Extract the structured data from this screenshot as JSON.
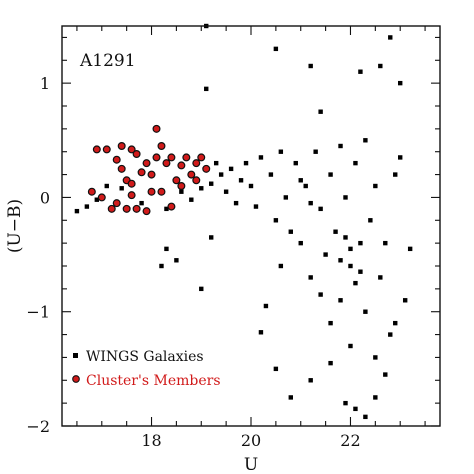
{
  "chart_data": {
    "type": "scatter",
    "annotation": "A1291",
    "xlabel": "U",
    "ylabel": "(U−B)",
    "xlim": [
      16.2,
      23.8
    ],
    "ylim": [
      -2.0,
      1.5
    ],
    "xticks": [
      18,
      20,
      22
    ],
    "yticks": [
      -2,
      -1,
      0,
      1
    ],
    "grid": false,
    "legend_position": "bottom-left",
    "series": [
      {
        "name": "WINGS Galaxies",
        "color": "#000000",
        "marker": "square",
        "points": [
          [
            16.5,
            -0.12
          ],
          [
            16.7,
            -0.08
          ],
          [
            16.9,
            -0.02
          ],
          [
            17.1,
            0.1
          ],
          [
            17.4,
            0.08
          ],
          [
            17.8,
            -0.05
          ],
          [
            18.3,
            -0.1
          ],
          [
            18.6,
            0.05
          ],
          [
            18.8,
            -0.02
          ],
          [
            19.0,
            0.08
          ],
          [
            19.2,
            0.12
          ],
          [
            19.3,
            0.3
          ],
          [
            19.4,
            0.2
          ],
          [
            19.5,
            0.05
          ],
          [
            19.6,
            0.25
          ],
          [
            19.7,
            -0.05
          ],
          [
            19.8,
            0.15
          ],
          [
            19.9,
            0.3
          ],
          [
            20.0,
            0.1
          ],
          [
            20.1,
            -0.08
          ],
          [
            18.2,
            -0.6
          ],
          [
            18.3,
            -0.45
          ],
          [
            18.5,
            -0.55
          ],
          [
            19.2,
            -0.35
          ],
          [
            19.0,
            -0.8
          ],
          [
            19.1,
            0.95
          ],
          [
            19.1,
            1.5
          ],
          [
            20.3,
            -0.95
          ],
          [
            20.5,
            1.3
          ],
          [
            20.6,
            -0.6
          ],
          [
            20.2,
            -1.18
          ],
          [
            20.5,
            -1.5
          ],
          [
            20.8,
            -1.75
          ],
          [
            21.2,
            -1.6
          ],
          [
            21.6,
            -1.45
          ],
          [
            21.9,
            -1.8
          ],
          [
            22.1,
            -1.85
          ],
          [
            22.3,
            -1.92
          ],
          [
            22.5,
            -1.75
          ],
          [
            22.7,
            -1.55
          ],
          [
            21.2,
            1.15
          ],
          [
            21.4,
            0.75
          ],
          [
            22.2,
            1.1
          ],
          [
            22.6,
            1.15
          ],
          [
            22.8,
            1.4
          ],
          [
            23.0,
            1.0
          ],
          [
            22.9,
            -1.1
          ],
          [
            23.1,
            -0.9
          ],
          [
            23.2,
            -0.45
          ],
          [
            23.0,
            0.35
          ],
          [
            20.2,
            0.35
          ],
          [
            20.4,
            0.2
          ],
          [
            20.5,
            -0.2
          ],
          [
            20.7,
            0.0
          ],
          [
            20.9,
            0.3
          ],
          [
            21.0,
            -0.4
          ],
          [
            21.1,
            0.1
          ],
          [
            21.2,
            -0.7
          ],
          [
            21.3,
            0.4
          ],
          [
            21.4,
            -0.1
          ],
          [
            21.5,
            -0.5
          ],
          [
            21.6,
            0.2
          ],
          [
            21.7,
            -0.3
          ],
          [
            21.8,
            -0.9
          ],
          [
            21.9,
            0.0
          ],
          [
            22.0,
            -0.6
          ],
          [
            22.1,
            0.3
          ],
          [
            22.2,
            -0.4
          ],
          [
            22.3,
            -1.0
          ],
          [
            22.4,
            -0.2
          ],
          [
            22.5,
            0.1
          ],
          [
            22.6,
            -0.7
          ],
          [
            22.7,
            -0.4
          ],
          [
            22.8,
            -1.2
          ],
          [
            22.9,
            0.2
          ],
          [
            21.8,
            -0.55
          ],
          [
            22.0,
            -0.45
          ],
          [
            22.2,
            -0.65
          ],
          [
            21.9,
            -0.35
          ],
          [
            22.1,
            -0.75
          ],
          [
            20.6,
            0.4
          ],
          [
            20.8,
            -0.3
          ],
          [
            21.0,
            0.15
          ],
          [
            21.2,
            -0.05
          ],
          [
            21.4,
            -0.85
          ],
          [
            21.6,
            -1.1
          ],
          [
            21.8,
            0.45
          ],
          [
            22.0,
            -1.3
          ],
          [
            22.3,
            0.5
          ],
          [
            22.5,
            -1.4
          ]
        ]
      },
      {
        "name": "Cluster's Members",
        "color": "#d11a1a",
        "marker": "circle",
        "points": [
          [
            16.8,
            0.05
          ],
          [
            17.0,
            0.0
          ],
          [
            16.9,
            0.42
          ],
          [
            17.1,
            0.42
          ],
          [
            17.3,
            0.33
          ],
          [
            17.4,
            0.25
          ],
          [
            17.5,
            0.15
          ],
          [
            17.6,
            0.12
          ],
          [
            17.7,
            0.38
          ],
          [
            17.8,
            0.22
          ],
          [
            17.4,
            0.45
          ],
          [
            17.6,
            0.42
          ],
          [
            17.9,
            0.3
          ],
          [
            18.0,
            0.2
          ],
          [
            18.1,
            0.35
          ],
          [
            18.2,
            0.05
          ],
          [
            18.3,
            0.3
          ],
          [
            18.4,
            0.35
          ],
          [
            18.5,
            0.15
          ],
          [
            18.6,
            0.28
          ],
          [
            18.7,
            0.35
          ],
          [
            18.8,
            0.2
          ],
          [
            18.9,
            0.3
          ],
          [
            19.0,
            0.35
          ],
          [
            19.1,
            0.25
          ],
          [
            18.1,
            0.6
          ],
          [
            18.2,
            0.45
          ],
          [
            17.3,
            -0.05
          ],
          [
            17.5,
            -0.1
          ],
          [
            17.7,
            -0.1
          ],
          [
            17.9,
            -0.12
          ],
          [
            18.0,
            0.05
          ],
          [
            18.4,
            -0.08
          ],
          [
            17.2,
            -0.1
          ],
          [
            18.6,
            0.1
          ],
          [
            18.9,
            0.15
          ],
          [
            17.6,
            0.02
          ]
        ]
      }
    ]
  }
}
